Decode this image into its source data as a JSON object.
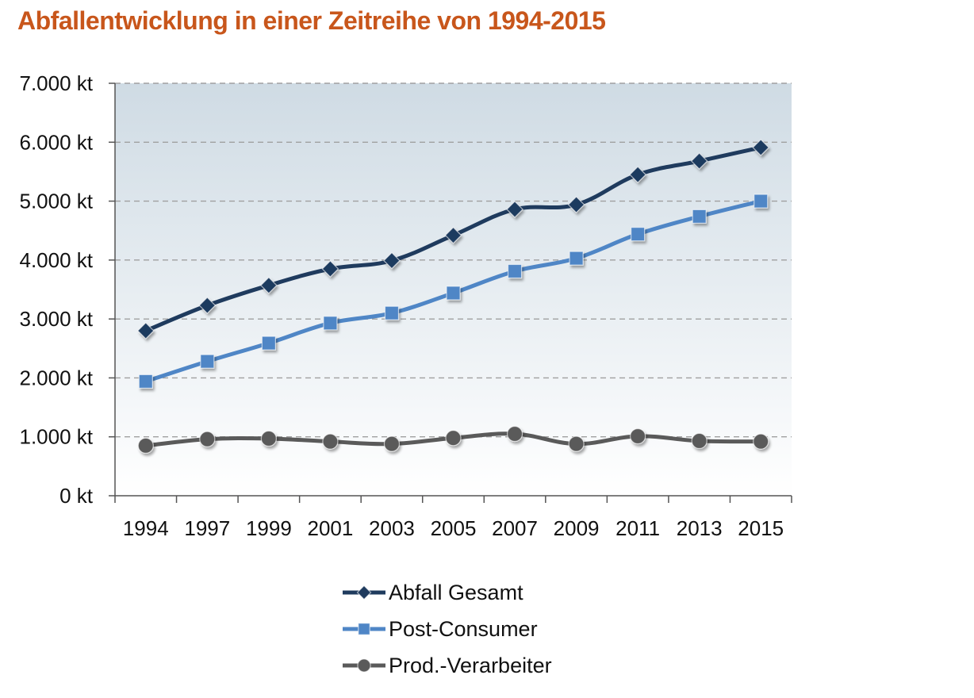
{
  "chart_data": {
    "type": "line",
    "title": "Abfallentwicklung in einer Zeitreihe von 1994-2015",
    "xlabel": "",
    "ylabel": "",
    "categories": [
      "1994",
      "1997",
      "1999",
      "2001",
      "2003",
      "2005",
      "2007",
      "2009",
      "2011",
      "2013",
      "2015"
    ],
    "y_ticks": [
      "0 kt",
      "1.000 kt",
      "2.000 kt",
      "3.000 kt",
      "4.000 kt",
      "5.000 kt",
      "6.000 kt",
      "7.000 kt"
    ],
    "ylim": [
      0,
      7000
    ],
    "y_unit": "kt",
    "grid": true,
    "legend_position": "bottom",
    "series": [
      {
        "name": "Abfall Gesamt",
        "color": "#1f3b5e",
        "marker": "diamond",
        "values": [
          2800,
          3230,
          3570,
          3850,
          3990,
          4420,
          4860,
          4940,
          5450,
          5680,
          5910
        ]
      },
      {
        "name": "Post-Consumer",
        "color": "#4f86c6",
        "marker": "square",
        "values": [
          1940,
          2280,
          2590,
          2930,
          3100,
          3440,
          3810,
          4030,
          4440,
          4740,
          5000
        ]
      },
      {
        "name": "Prod.-Verarbeiter",
        "color": "#5a5a5a",
        "marker": "circle",
        "values": [
          850,
          960,
          970,
          920,
          880,
          980,
          1050,
          880,
          1010,
          930,
          920
        ]
      }
    ]
  }
}
